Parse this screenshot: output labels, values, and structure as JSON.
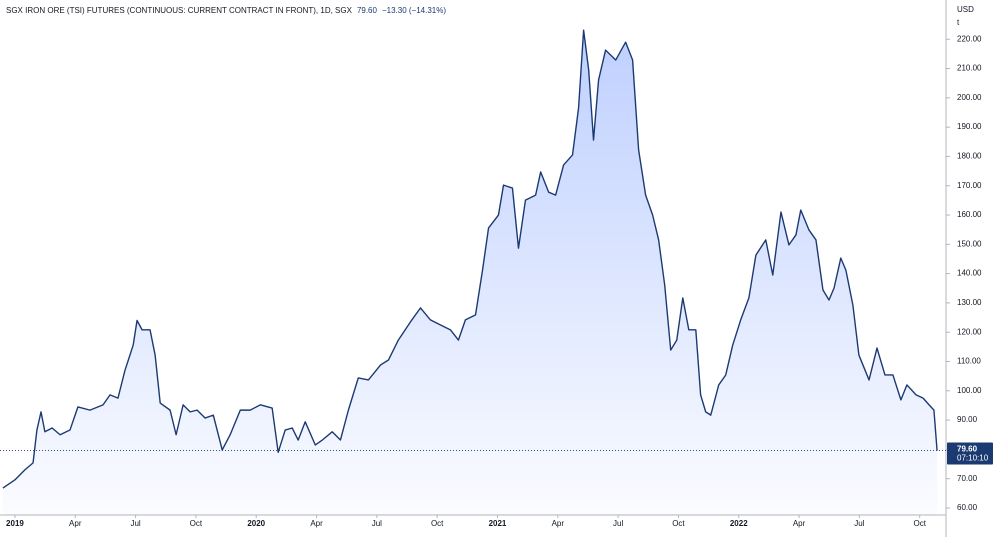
{
  "chart_data": {
    "type": "line",
    "title": "SGX IRON ORE (TSI) FUTURES (CONTINUOUS: CURRENT CONTRACT IN FRONT), 1D, SGX",
    "change": "−13.30 (−14.31%)",
    "last_price": {
      "value": 79.6,
      "label": "79.60"
    },
    "countdown": "07:10:10",
    "y_unit": "USD",
    "y_unit_2": "t",
    "xlim": [
      2018.938,
      2022.859
    ],
    "ylim": [
      57.6,
      233.4
    ],
    "xticks": [
      2019,
      {
        "value": 2019.25,
        "label": "Apr"
      },
      {
        "value": 2019.5,
        "label": "Jul"
      },
      {
        "value": 2019.75,
        "label": "Oct"
      },
      2020,
      {
        "value": 2020.25,
        "label": "Apr"
      },
      {
        "value": 2020.5,
        "label": "Jul"
      },
      {
        "value": 2020.75,
        "label": "Oct"
      },
      2021,
      {
        "value": 2021.25,
        "label": "Apr"
      },
      {
        "value": 2021.5,
        "label": "Jul"
      },
      {
        "value": 2021.75,
        "label": "Oct"
      },
      2022,
      {
        "value": 2022.25,
        "label": "Apr"
      },
      {
        "value": 2022.5,
        "label": "Jul"
      },
      {
        "value": 2022.75,
        "label": "Oct"
      }
    ],
    "yticks": [
      {
        "value": 60,
        "label": "60.00"
      },
      {
        "value": 70,
        "label": "70.00"
      },
      {
        "value": 80,
        "label": "80.00"
      },
      {
        "value": 90,
        "label": "90.00"
      },
      {
        "value": 100,
        "label": "100.00"
      },
      {
        "value": 110,
        "label": "110.00"
      },
      {
        "value": 120,
        "label": "120.00"
      },
      {
        "value": 130,
        "label": "130.00"
      },
      {
        "value": 140,
        "label": "140.00"
      },
      {
        "value": 150,
        "label": "150.00"
      },
      {
        "value": 160,
        "label": "160.00"
      },
      {
        "value": 170,
        "label": "170.00"
      },
      {
        "value": 180,
        "label": "180.00"
      },
      {
        "value": 190,
        "label": "190.00"
      },
      {
        "value": 200,
        "label": "200.00"
      },
      {
        "value": 210,
        "label": "210.00"
      },
      {
        "value": 220,
        "label": "220.00"
      }
    ],
    "x": [
      2018.95,
      2019.0,
      2019.041,
      2019.075,
      2019.091,
      2019.108,
      2019.124,
      2019.154,
      2019.187,
      2019.228,
      2019.261,
      2019.311,
      2019.365,
      2019.394,
      2019.427,
      2019.456,
      2019.49,
      2019.506,
      2019.527,
      2019.56,
      2019.581,
      2019.602,
      2019.643,
      2019.668,
      2019.697,
      2019.726,
      2019.755,
      2019.788,
      2019.822,
      2019.859,
      2019.892,
      2019.934,
      2019.975,
      2020.017,
      2020.066,
      2020.091,
      2020.12,
      2020.149,
      2020.174,
      2020.203,
      2020.245,
      2020.274,
      2020.315,
      2020.349,
      2020.382,
      2020.423,
      2020.465,
      2020.515,
      2020.548,
      2020.589,
      2020.639,
      2020.681,
      2020.722,
      2020.763,
      2020.805,
      2020.838,
      2020.867,
      2020.909,
      2020.938,
      2020.963,
      2021.004,
      2021.025,
      2021.062,
      2021.087,
      2021.116,
      2021.158,
      2021.179,
      2021.212,
      2021.241,
      2021.274,
      2021.311,
      2021.336,
      2021.357,
      2021.378,
      2021.398,
      2021.419,
      2021.448,
      2021.49,
      2021.531,
      2021.56,
      2021.585,
      2021.614,
      2021.643,
      2021.668,
      2021.693,
      2021.718,
      2021.743,
      2021.768,
      2021.793,
      2021.822,
      2021.842,
      2021.863,
      2021.884,
      2021.917,
      2021.946,
      2021.975,
      2022.008,
      2022.042,
      2022.071,
      2022.112,
      2022.141,
      2022.175,
      2022.208,
      2022.237,
      2022.257,
      2022.291,
      2022.32,
      2022.349,
      2022.374,
      2022.395,
      2022.423,
      2022.444,
      2022.473,
      2022.498,
      2022.54,
      2022.573,
      2022.606,
      2022.639,
      2022.672,
      2022.697,
      2022.735,
      2022.764,
      2022.789,
      2022.809,
      2022.822
    ],
    "series": [
      {
        "name": "SGX IRON ORE (TSI) FUTURES",
        "color": "#1c3a72",
        "values": [
          66.8,
          69.6,
          73,
          75.4,
          86.6,
          92.8,
          86,
          87.3,
          85,
          86.6,
          94.5,
          93.4,
          95.2,
          98.6,
          97.5,
          107,
          115.6,
          124,
          120.8,
          120.8,
          112.2,
          95.8,
          93.4,
          85,
          95.2,
          92.8,
          93.4,
          90.7,
          91.7,
          79.8,
          85,
          93.4,
          93.4,
          95.2,
          94.1,
          79,
          86.6,
          87.3,
          83.2,
          89.4,
          81.5,
          83.2,
          86,
          83.2,
          93.4,
          104.4,
          103.7,
          108.8,
          110.5,
          117.3,
          123.5,
          128.3,
          124.2,
          122.5,
          120.8,
          117.3,
          124.2,
          125.9,
          141.2,
          155.6,
          160,
          170.2,
          169.2,
          148.7,
          165.1,
          166.8,
          174.7,
          167.8,
          166.8,
          177.1,
          180.5,
          196.5,
          223.1,
          209.5,
          185.6,
          206.1,
          216.3,
          212.9,
          219,
          212.9,
          182.2,
          166.8,
          160,
          151.5,
          136.1,
          113.9,
          117.3,
          131.7,
          120.8,
          120.8,
          98.6,
          92.8,
          91.7,
          102,
          105.4,
          115.6,
          124.2,
          131.7,
          146.3,
          151.5,
          139.5,
          161,
          149.8,
          153.2,
          161.7,
          154.9,
          151.5,
          134.4,
          131,
          135.1,
          145.3,
          141.2,
          129.3,
          112.2,
          103.7,
          114.6,
          105.4,
          105.4,
          96.9,
          102,
          98.6,
          97.5,
          95.2,
          93.4,
          79.6
        ]
      }
    ]
  }
}
